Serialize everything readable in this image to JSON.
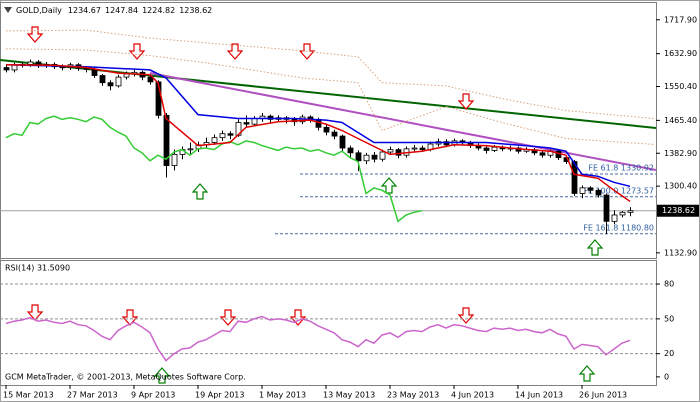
{
  "chart_data": [
    {
      "type": "candlestick",
      "title": "GOLD,Daily",
      "categories": [
        "15 Mar 2013",
        null,
        null,
        null,
        null,
        null,
        null,
        null,
        "27 Mar 2013",
        null,
        null,
        null,
        null,
        null,
        null,
        null,
        "9 Apr 2013",
        null,
        null,
        null,
        null,
        null,
        null,
        null,
        "19 Apr 2013",
        null,
        null,
        null,
        null,
        null,
        null,
        null,
        "1 May 2013",
        null,
        null,
        null,
        null,
        null,
        null,
        null,
        "13 May 2013",
        null,
        null,
        null,
        null,
        null,
        null,
        null,
        "23 May 2013",
        null,
        null,
        null,
        null,
        null,
        null,
        null,
        "4 Jun 2013",
        null,
        null,
        null,
        null,
        null,
        null,
        null,
        "14 Jun 2013",
        null,
        null,
        null,
        null,
        null,
        null,
        null,
        "26 Jun 2013",
        null,
        null,
        null,
        null,
        null,
        null
      ],
      "open": [
        1598,
        1592,
        1604,
        1606,
        1612,
        1603,
        1606,
        1600,
        1598,
        1605,
        1596,
        1594,
        1578,
        1560,
        1552,
        1574,
        1582,
        1586,
        1574,
        1562,
        1478,
        1352,
        1380,
        1392,
        1394,
        1404,
        1410,
        1422,
        1432,
        1428,
        1460,
        1456,
        1470,
        1476,
        1468,
        1472,
        1468,
        1462,
        1474,
        1468,
        1448,
        1436,
        1426,
        1396,
        1384,
        1364,
        1378,
        1368,
        1386,
        1392,
        1378,
        1394,
        1396,
        1392,
        1406,
        1412,
        1404,
        1414,
        1410,
        1402,
        1396,
        1390,
        1398,
        1394,
        1396,
        1388,
        1392,
        1384,
        1378,
        1388,
        1372,
        1362,
        1282,
        1296,
        1290,
        1278,
        1212,
        1228,
        1234.67
      ],
      "high": [
        1604,
        1610,
        1612,
        1618,
        1617,
        1612,
        1611,
        1606,
        1610,
        1609,
        1602,
        1598,
        1582,
        1566,
        1580,
        1588,
        1596,
        1590,
        1580,
        1566,
        1484,
        1392,
        1400,
        1410,
        1412,
        1422,
        1430,
        1440,
        1438,
        1468,
        1478,
        1476,
        1484,
        1480,
        1478,
        1476,
        1474,
        1480,
        1478,
        1472,
        1454,
        1442,
        1430,
        1402,
        1390,
        1384,
        1386,
        1392,
        1400,
        1396,
        1400,
        1404,
        1402,
        1412,
        1420,
        1418,
        1420,
        1418,
        1414,
        1408,
        1400,
        1404,
        1402,
        1402,
        1400,
        1398,
        1396,
        1390,
        1392,
        1392,
        1378,
        1366,
        1302,
        1300,
        1294,
        1282,
        1240,
        1238,
        1247.84
      ],
      "low": [
        1586,
        1586,
        1598,
        1600,
        1597,
        1597,
        1594,
        1591,
        1592,
        1590,
        1586,
        1572,
        1552,
        1541,
        1548,
        1568,
        1576,
        1566,
        1555,
        1470,
        1322,
        1340,
        1368,
        1380,
        1386,
        1396,
        1404,
        1414,
        1418,
        1424,
        1448,
        1450,
        1462,
        1460,
        1462,
        1458,
        1452,
        1456,
        1460,
        1440,
        1428,
        1418,
        1388,
        1372,
        1338,
        1356,
        1360,
        1362,
        1380,
        1370,
        1372,
        1388,
        1386,
        1388,
        1400,
        1398,
        1400,
        1404,
        1396,
        1390,
        1382,
        1386,
        1388,
        1388,
        1382,
        1384,
        1378,
        1372,
        1372,
        1366,
        1356,
        1276,
        1270,
        1282,
        1272,
        1180,
        1205,
        1222,
        1224.82
      ],
      "close": [
        1592,
        1604,
        1606,
        1612,
        1603,
        1606,
        1600,
        1598,
        1605,
        1596,
        1594,
        1578,
        1560,
        1552,
        1574,
        1582,
        1586,
        1574,
        1562,
        1478,
        1352,
        1380,
        1392,
        1394,
        1404,
        1410,
        1422,
        1432,
        1428,
        1460,
        1456,
        1470,
        1476,
        1468,
        1472,
        1468,
        1462,
        1474,
        1468,
        1448,
        1436,
        1426,
        1396,
        1384,
        1364,
        1378,
        1368,
        1386,
        1392,
        1378,
        1394,
        1396,
        1392,
        1406,
        1412,
        1404,
        1414,
        1410,
        1402,
        1396,
        1390,
        1398,
        1394,
        1396,
        1388,
        1392,
        1384,
        1378,
        1388,
        1372,
        1362,
        1282,
        1296,
        1290,
        1278,
        1212,
        1228,
        1234.67,
        1238.62
      ],
      "series": [
        {
          "color": "#d9a07a",
          "style": "dotted",
          "x": [
            0,
            10,
            18,
            25,
            37,
            44,
            47,
            55,
            62,
            70,
            81
          ],
          "values": [
            1690,
            1692,
            1672,
            1660,
            1640,
            1625,
            1560,
            1552,
            1520,
            1490,
            1470
          ]
        },
        {
          "color": "#d9a07a",
          "style": "dotted",
          "x": [
            0,
            10,
            18,
            25,
            37,
            44,
            47,
            55,
            62,
            70,
            81
          ],
          "values": [
            1645,
            1642,
            1628,
            1610,
            1572,
            1560,
            1440,
            1500,
            1460,
            1420,
            1405
          ]
        },
        {
          "color": "#33cc33",
          "style": "solid",
          "x": [
            0,
            1,
            2,
            3,
            4,
            5,
            6,
            7,
            8,
            9,
            10,
            11,
            12,
            13,
            14,
            15,
            16,
            17,
            18,
            19,
            20,
            21,
            22,
            23,
            24,
            25,
            26,
            27,
            28,
            29,
            30,
            31,
            32,
            33,
            34,
            35,
            36,
            37,
            38,
            39,
            40,
            41,
            42,
            43,
            44,
            45,
            46,
            47,
            48,
            49,
            50,
            51,
            52
          ],
          "values": [
            1422,
            1432,
            1428,
            1460,
            1456,
            1470,
            1476,
            1468,
            1472,
            1468,
            1462,
            1474,
            1468,
            1448,
            1436,
            1426,
            1396,
            1384,
            1364,
            1378,
            1368,
            1386,
            1392,
            1378,
            1394,
            1396,
            1392,
            1406,
            1412,
            1404,
            1414,
            1410,
            1402,
            1396,
            1390,
            1398,
            1394,
            1396,
            1388,
            1392,
            1384,
            1378,
            1388,
            1372,
            1362,
            1282,
            1296,
            1290,
            1278,
            1212,
            1228,
            1234.67,
            1238.62
          ]
        },
        {
          "color": "#0000e0",
          "style": "solid",
          "x": [
            0,
            10,
            18,
            20,
            24,
            29,
            36,
            40,
            42,
            46,
            52,
            60,
            66,
            68,
            70,
            72,
            74,
            76,
            78
          ],
          "values": [
            1605,
            1600,
            1592,
            1572,
            1480,
            1470,
            1470,
            1466,
            1460,
            1410,
            1410,
            1410,
            1400,
            1396,
            1388,
            1330,
            1325,
            1310,
            1300
          ]
        },
        {
          "color": "#e00000",
          "style": "solid",
          "x": [
            0,
            6,
            10,
            14,
            18,
            19,
            20,
            24,
            28,
            30,
            34,
            38,
            40,
            42,
            44,
            48,
            52,
            56,
            60,
            64,
            68,
            70,
            71,
            74,
            76,
            78
          ],
          "values": [
            1605,
            1604,
            1598,
            1584,
            1580,
            1560,
            1470,
            1402,
            1410,
            1448,
            1462,
            1466,
            1456,
            1440,
            1420,
            1380,
            1388,
            1404,
            1402,
            1394,
            1388,
            1378,
            1330,
            1320,
            1290,
            1262
          ]
        }
      ],
      "levels": [
        {
          "label": "FE 61.8 1330.92",
          "value": 1330.92
        },
        {
          "label": "FE 100.0 1273.57",
          "value": 1273.57
        },
        {
          "label": "FE 161.8 1180.80",
          "value": 1180.8
        }
      ],
      "last_price": 1238.62,
      "ylim": [
        1120,
        1760
      ],
      "yticks": [
        {
          "value": 1717.9,
          "label": "1717.90"
        },
        {
          "value": 1632.9,
          "label": "1632.90"
        },
        {
          "value": 1550.4,
          "label": "1550.40"
        },
        {
          "value": 1465.4,
          "label": "1465.40"
        },
        {
          "value": 1382.9,
          "label": "1382.90"
        },
        {
          "value": 1300.4,
          "label": "1300.40"
        },
        {
          "value": 1132.9,
          "label": "1132.90"
        }
      ]
    },
    {
      "type": "line",
      "title": "RSI(14) 31.5090",
      "color": "#cc66cc",
      "values": [
        46,
        48,
        49,
        51,
        48,
        49,
        47,
        46,
        48,
        45,
        44,
        40,
        35,
        32,
        40,
        44,
        47,
        43,
        38,
        24,
        14,
        20,
        24,
        25,
        30,
        32,
        36,
        40,
        39,
        48,
        47,
        50,
        52,
        49,
        50,
        49,
        47,
        50,
        48,
        44,
        41,
        38,
        32,
        30,
        26,
        32,
        29,
        36,
        38,
        34,
        39,
        40,
        39,
        43,
        45,
        42,
        45,
        44,
        42,
        40,
        39,
        42,
        41,
        42,
        40,
        41,
        39,
        38,
        41,
        37,
        35,
        24,
        28,
        27,
        26,
        19,
        24,
        29,
        31.509
      ],
      "levels": [
        80,
        50,
        20
      ],
      "ylim": [
        -7,
        99
      ],
      "yticks": [
        80,
        50,
        20,
        0
      ],
      "annotation": "GCM MetaTrader, © 2001-2013, MetaQuotes Software Corp."
    }
  ]
}
